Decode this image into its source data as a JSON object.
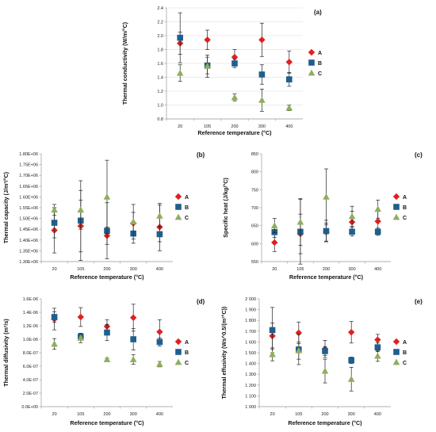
{
  "colors": {
    "A": "#e02020",
    "B": "#1f5f8b",
    "C": "#8fae5a",
    "errorbar": "#222222",
    "grid": "#d9d9d9"
  },
  "chart_data": [
    {
      "id": "a",
      "type": "scatter",
      "panel_label": "(a)",
      "xlabel": "Reference temperature (°C)",
      "ylabel": "Thermal conductivity (W/m/°C)",
      "x": [
        "20",
        "105",
        "200",
        "300",
        "400"
      ],
      "ylim": [
        0.8,
        2.4
      ],
      "yticks": [
        0.8,
        1.0,
        1.2,
        1.4,
        1.6,
        1.8,
        2.0,
        2.2,
        2.4
      ],
      "ytick_labels": [
        "0.8",
        "1.0",
        "1.2",
        "1.4",
        "1.6",
        "1.8",
        "2.0",
        "2.2",
        "2.4"
      ],
      "grid": true,
      "legend_position": "right",
      "series": [
        {
          "name": "A",
          "marker": "diamond",
          "values": [
            1.89,
            1.94,
            1.69,
            1.94,
            1.62
          ],
          "errors": [
            0.16,
            0.14,
            0.11,
            0.24,
            0.16
          ]
        },
        {
          "name": "B",
          "marker": "square",
          "values": [
            1.97,
            1.57,
            1.6,
            1.44,
            1.37
          ],
          "errors": [
            0.36,
            0.12,
            0.06,
            0.14,
            0.1
          ]
        },
        {
          "name": "C",
          "marker": "triangle",
          "values": [
            1.46,
            1.56,
            1.11,
            1.07,
            0.96
          ],
          "errors": [
            0.12,
            0.16,
            0.05,
            0.16,
            0.04
          ]
        }
      ]
    },
    {
      "id": "b",
      "type": "scatter",
      "panel_label": "(b)",
      "xlabel": "Reference temperature (°C)",
      "ylabel": "Thermal capacity (J/m³/°C)",
      "x": [
        "20",
        "105",
        "200",
        "300",
        "400"
      ],
      "ylim": [
        1300000,
        1800000
      ],
      "yticks": [
        1300000,
        1350000,
        1400000,
        1450000,
        1500000,
        1550000,
        1600000,
        1650000,
        1700000,
        1750000,
        1800000
      ],
      "ytick_labels": [
        "1.30E+06",
        "1.35E+06",
        "1.40E+06",
        "1.45E+06",
        "1.50E+06",
        "1.55E+06",
        "1.60E+06",
        "1.65E+06",
        "1.70E+06",
        "1.75E+06",
        "1.80E+06"
      ],
      "grid": false,
      "legend_position": "right",
      "series": [
        {
          "name": "A",
          "marker": "diamond",
          "values": [
            1445000,
            1465000,
            1420000,
            1478000,
            1460000
          ],
          "errors": [
            105000,
            120000,
            40000,
            50000,
            110000
          ]
        },
        {
          "name": "B",
          "marker": "square",
          "values": [
            1480000,
            1490000,
            1443000,
            1430000,
            1427000
          ],
          "errors": [
            70000,
            185000,
            130000,
            45000,
            35000
          ]
        },
        {
          "name": "C",
          "marker": "triangle",
          "values": [
            1540000,
            1540000,
            1600000,
            1485000,
            1512000
          ],
          "errors": [
            25000,
            90000,
            170000,
            80000,
            50000
          ]
        }
      ]
    },
    {
      "id": "c",
      "type": "scatter",
      "panel_label": "(c)",
      "xlabel": "Reference temperature (°C)",
      "ylabel": "Specific heat (J/kg/°C)",
      "x": [
        "20",
        "105",
        "200",
        "300",
        "400"
      ],
      "ylim": [
        550,
        850
      ],
      "yticks": [
        550,
        600,
        650,
        700,
        750,
        800,
        850
      ],
      "ytick_labels": [
        "550",
        "600",
        "650",
        "700",
        "750",
        "800",
        "850"
      ],
      "grid": false,
      "legend_position": "right",
      "series": [
        {
          "name": "A",
          "marker": "diamond",
          "values": [
            603,
            627,
            632,
            660,
            662
          ],
          "errors": [
            25,
            55,
            25,
            30,
            30
          ]
        },
        {
          "name": "B",
          "marker": "square",
          "values": [
            632,
            633,
            635,
            633,
            633
          ],
          "errors": [
            15,
            90,
            30,
            12,
            10
          ]
        },
        {
          "name": "C",
          "marker": "triangle",
          "values": [
            650,
            660,
            730,
            676,
            696
          ],
          "errors": [
            20,
            65,
            78,
            28,
            25
          ]
        }
      ]
    },
    {
      "id": "d",
      "type": "scatter",
      "panel_label": "(d)",
      "xlabel": "Reference temperature (°C)",
      "ylabel": "Thermal diffusivity (m²/s)",
      "x": [
        "20",
        "105",
        "200",
        "300",
        "400"
      ],
      "ylim": [
        0,
        1.6e-06
      ],
      "yticks": [
        0,
        2e-07,
        4e-07,
        6e-07,
        8e-07,
        1e-06,
        1.2e-06,
        1.4e-06,
        1.6e-06
      ],
      "ytick_labels": [
        "0.0E+00",
        "2.0E-07",
        "4.0E-07",
        "6.0E-07",
        "8.0E-07",
        "1.0E-06",
        "1.2E-06",
        "1.4E-06",
        "1.6E-06"
      ],
      "grid": false,
      "legend_position": "right",
      "series": [
        {
          "name": "A",
          "marker": "diamond",
          "values": [
            1.3e-06,
            1.33e-06,
            1.19e-06,
            1.32e-06,
            1.11e-06
          ],
          "errors": [
            1.6e-07,
            1.4e-07,
            1e-07,
            2e-07,
            1.8e-07
          ]
        },
        {
          "name": "B",
          "marker": "square",
          "values": [
            1.33e-06,
            1.04e-06,
            1.1e-06,
            1e-06,
            9.6e-07
          ],
          "errors": [
            8e-08,
            5e-08,
            1.2e-07,
            1.6e-07,
            6e-08
          ]
        },
        {
          "name": "C",
          "marker": "triangle",
          "values": [
            9.3e-07,
            1.02e-06,
            7e-07,
            7e-07,
            6.3e-07
          ],
          "errors": [
            8e-08,
            7e-08,
            2e-08,
            7e-08,
            4e-08
          ]
        }
      ]
    },
    {
      "id": "e",
      "type": "scatter",
      "panel_label": "(e)",
      "xlabel": "Reference temperature (°C)",
      "ylabel": "Thermal effusivity (Ws^0.5/(m²°C))",
      "x": [
        "20",
        "105",
        "200",
        "300",
        "400"
      ],
      "ylim": [
        1000,
        2000
      ],
      "yticks": [
        1000,
        1100,
        1200,
        1300,
        1400,
        1500,
        1600,
        1700,
        1800,
        1900,
        2000
      ],
      "ytick_labels": [
        "1 000",
        "1 100",
        "1 200",
        "1 300",
        "1 400",
        "1 500",
        "1 600",
        "1 700",
        "1 800",
        "1 900",
        "2 000"
      ],
      "grid": false,
      "legend_position": "right",
      "series": [
        {
          "name": "A",
          "marker": "diamond",
          "values": [
            1655,
            1685,
            1535,
            1690,
            1620
          ],
          "errors": [
            120,
            100,
            80,
            100,
            50
          ]
        },
        {
          "name": "B",
          "marker": "square",
          "values": [
            1710,
            1530,
            1515,
            1430,
            1550
          ],
          "errors": [
            210,
            140,
            40,
            30,
            40
          ]
        },
        {
          "name": "C",
          "marker": "triangle",
          "values": [
            1485,
            1520,
            1330,
            1255,
            1470
          ],
          "errors": [
            60,
            80,
            110,
            110,
            50
          ]
        }
      ]
    }
  ]
}
